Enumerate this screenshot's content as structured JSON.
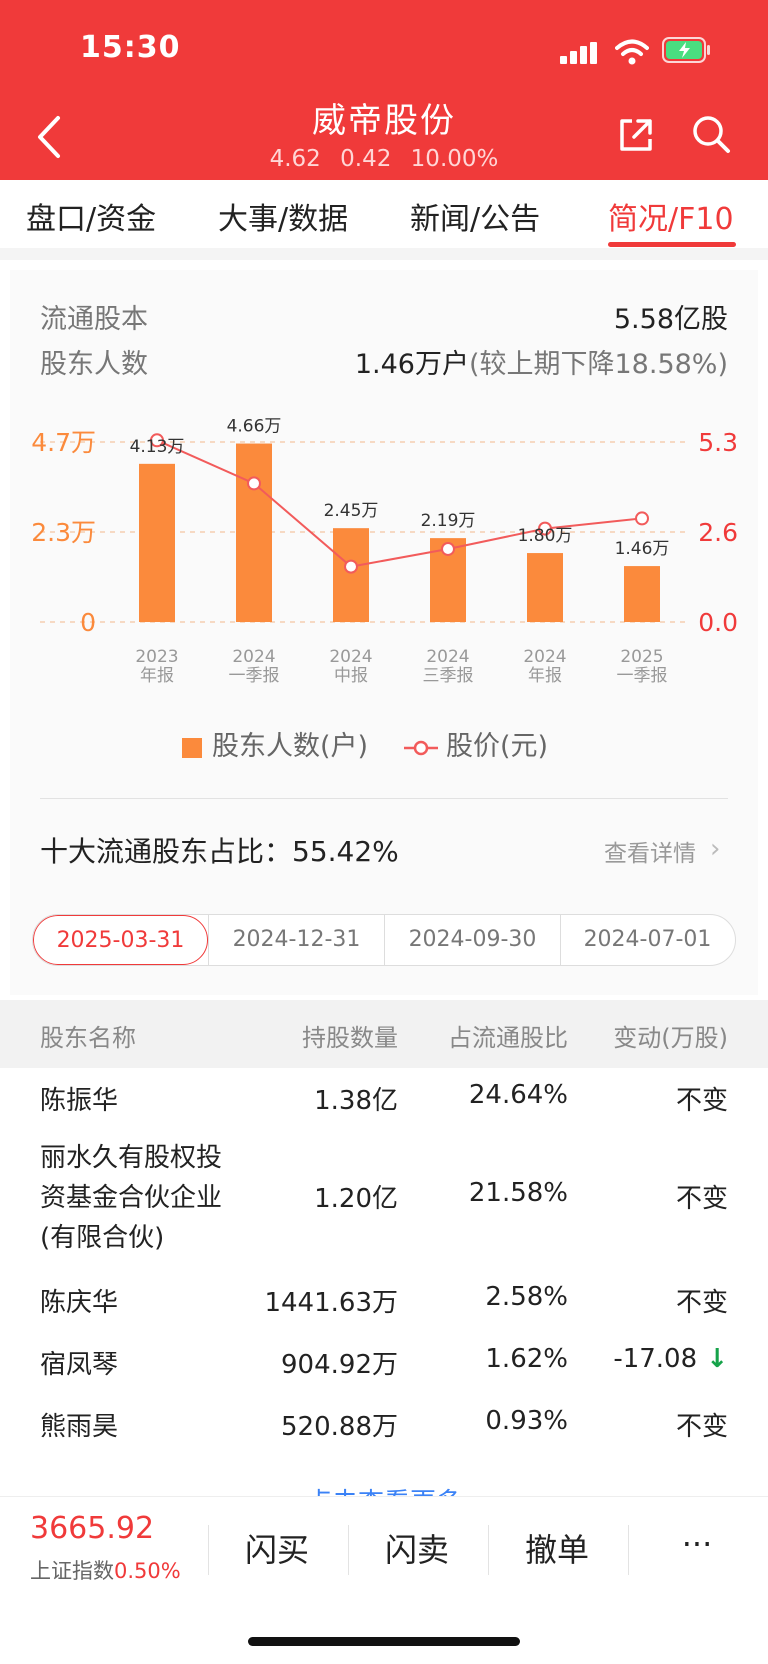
{
  "status_bar": {
    "time": "15:30"
  },
  "header": {
    "title": "威帝股份",
    "price": "4.62",
    "change": "0.42",
    "change_pct": "10.00%"
  },
  "tabs": [
    {
      "label": "盘口/资金"
    },
    {
      "label": "大事/数据"
    },
    {
      "label": "新闻/公告"
    },
    {
      "label": "简况/F10",
      "active": true
    }
  ],
  "summary": {
    "float_shares_label": "流通股本",
    "float_shares_value": "5.58亿股",
    "holders_label": "股东人数",
    "holders_value": "1.46万户",
    "holders_note": "(较上期下降18.58%)"
  },
  "chart_data": {
    "type": "bar",
    "categories": [
      "2023 年报",
      "2024 一季报",
      "2024 中报",
      "2024 三季报",
      "2024 年报",
      "2025 一季报"
    ],
    "category_lines": [
      [
        "2023",
        "年报"
      ],
      [
        "2024",
        "一季报"
      ],
      [
        "2024",
        "中报"
      ],
      [
        "2024",
        "三季报"
      ],
      [
        "2024",
        "年报"
      ],
      [
        "2025",
        "一季报"
      ]
    ],
    "series": [
      {
        "name": "股东人数(户)",
        "type": "bar",
        "values": [
          4.13,
          4.66,
          2.45,
          2.19,
          1.8,
          1.46
        ],
        "labels": [
          "4.13万",
          "4.66万",
          "2.45万",
          "2.19万",
          "1.80万",
          "1.46万"
        ],
        "color": "#fb8a3c"
      },
      {
        "name": "股价(元)",
        "type": "line",
        "values": [
          5.35,
          4.08,
          1.63,
          2.15,
          2.75,
          3.05
        ],
        "color": "#f25b5b"
      }
    ],
    "y_left": {
      "ticks": [
        "4.7万",
        "2.3万",
        "0"
      ],
      "range": [
        0,
        4.7
      ]
    },
    "y_right": {
      "ticks": [
        "5.3",
        "2.6",
        "0.0"
      ],
      "range": [
        0,
        5.3
      ]
    },
    "legend_position": "bottom"
  },
  "top_holders": {
    "ratio_label": "十大流通股东占比：55.42%",
    "detail_link": "查看详情",
    "dates": [
      "2025-03-31",
      "2024-12-31",
      "2024-09-30",
      "2024-07-01"
    ],
    "selected_date": "2025-03-31",
    "columns": [
      "股东名称",
      "持股数量",
      "占流通股比",
      "变动(万股)"
    ],
    "rows": [
      {
        "name": "陈振华",
        "shares": "1.38亿",
        "ratio": "24.64%",
        "change": "不变"
      },
      {
        "name": [
          "丽水久有股权投",
          "资基金合伙企业",
          "(有限合伙)"
        ],
        "shares": "1.20亿",
        "ratio": "21.58%",
        "change": "不变"
      },
      {
        "name": "陈庆华",
        "shares": "1441.63万",
        "ratio": "2.58%",
        "change": "不变"
      },
      {
        "name": "宿凤琴",
        "shares": "904.92万",
        "ratio": "1.62%",
        "change": "-17.08",
        "change_dir": "down"
      },
      {
        "name": "熊雨昊",
        "shares": "520.88万",
        "ratio": "0.93%",
        "change": "不变"
      }
    ],
    "more_label": "点击查看更多"
  },
  "bottom_bar": {
    "index_value": "3665.92",
    "index_name": "上证指数",
    "index_pct": "0.50%",
    "buttons": [
      "闪买",
      "闪卖",
      "撤单",
      "···"
    ]
  },
  "colors": {
    "accent": "#f03a3a",
    "bar": "#fb8a3c",
    "line": "#f25b5b",
    "down": "#16a34a"
  }
}
